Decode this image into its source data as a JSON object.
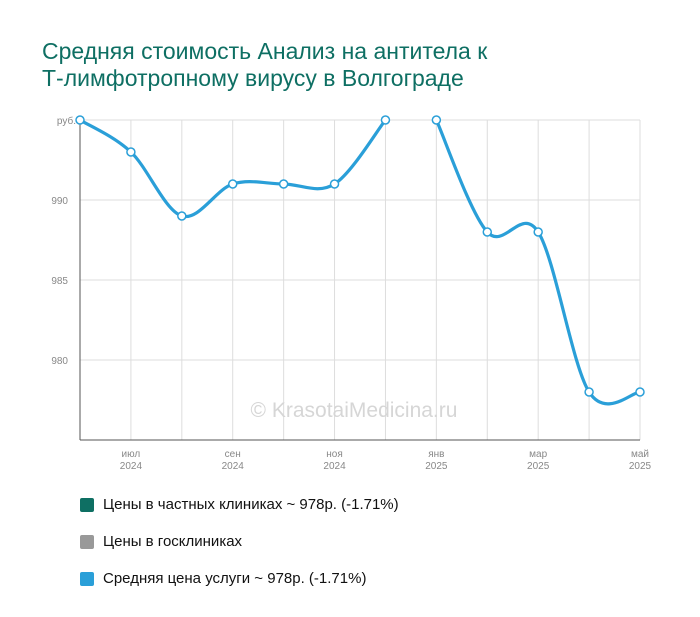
{
  "title_lines": [
    "Средняя стоимость Анализ на антитела к",
    "Т-лимфотропному вирусу в Волгограде"
  ],
  "watermark": "© KrasotaiMedicina.ru",
  "colors": {
    "title": "#0e6f63",
    "private": "#0e6f63",
    "public": "#999999",
    "average": "#2a9fd8",
    "grid": "#dddddd",
    "axis": "#555555",
    "tick_text": "#888888"
  },
  "chart_data": {
    "type": "line",
    "y_unit_label": "руб.",
    "ylim": [
      975,
      995
    ],
    "yticks": [
      980,
      985,
      990
    ],
    "x_tick_labels": [
      {
        "month": "июл",
        "year": "2024"
      },
      {
        "month": "сен",
        "year": "2024"
      },
      {
        "month": "ноя",
        "year": "2024"
      },
      {
        "month": "янв",
        "year": "2025"
      },
      {
        "month": "мар",
        "year": "2025"
      },
      {
        "month": "май",
        "year": "2025"
      }
    ],
    "x": [
      "2024-06",
      "2024-07",
      "2024-08",
      "2024-09",
      "2024-10",
      "2024-11",
      "2024-12",
      "2025-01",
      "2025-02",
      "2025-03",
      "2025-04",
      "2025-05"
    ],
    "series": [
      {
        "name": "Средняя цена услуги",
        "values": [
          995,
          993,
          989,
          991,
          991,
          991,
          995,
          995,
          988,
          988,
          978,
          978
        ],
        "segments": [
          [
            0,
            6
          ],
          [
            7,
            11
          ]
        ]
      }
    ],
    "grid": true
  },
  "legend": [
    {
      "label": "Цены в частных клиниках ~ 978р. (-1.71%)",
      "color": "#0e6f63"
    },
    {
      "label": "Цены в госклиниках",
      "color": "#999999"
    },
    {
      "label": "Средняя цена услуги ~ 978р. (-1.71%)",
      "color": "#2a9fd8"
    }
  ]
}
